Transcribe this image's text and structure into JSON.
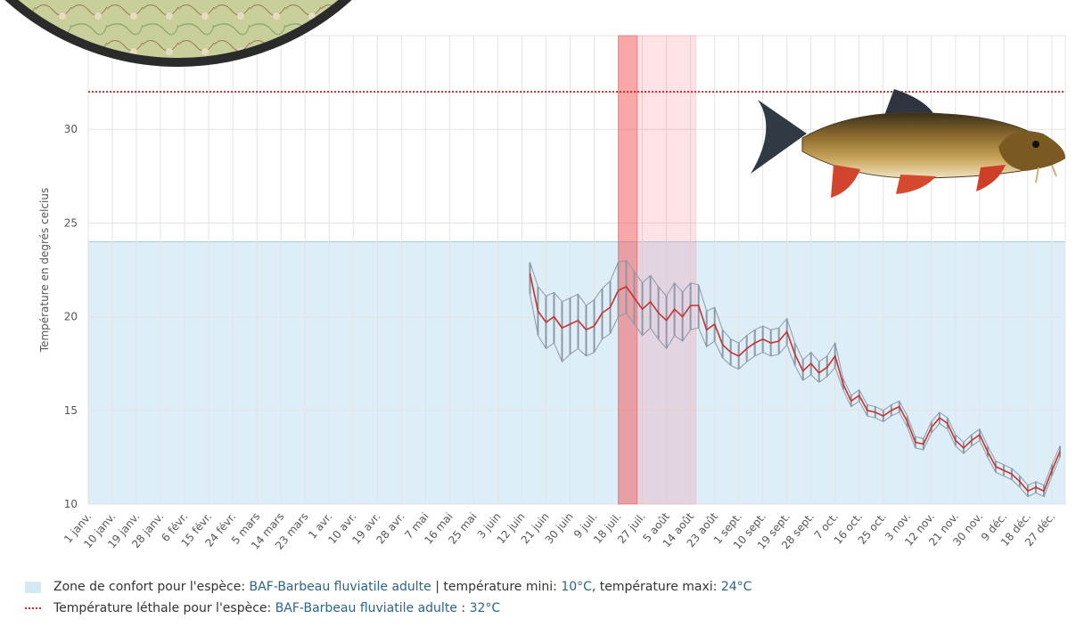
{
  "chart_data": {
    "type": "line",
    "y_label": "Température en degrés celcius",
    "xlim": [
      0,
      365
    ],
    "xticks": [
      {
        "value": 0,
        "label": "1 janv."
      },
      {
        "value": 9,
        "label": "10 janv."
      },
      {
        "value": 18,
        "label": "19 janv."
      },
      {
        "value": 27,
        "label": "28 janv."
      },
      {
        "value": 36,
        "label": "6 févr."
      },
      {
        "value": 45,
        "label": "15 févr."
      },
      {
        "value": 54,
        "label": "24 févr."
      },
      {
        "value": 63,
        "label": "5 mars"
      },
      {
        "value": 72,
        "label": "14 mars"
      },
      {
        "value": 81,
        "label": "23 mars"
      },
      {
        "value": 90,
        "label": "1 avr."
      },
      {
        "value": 99,
        "label": "10 avr."
      },
      {
        "value": 108,
        "label": "19 avr."
      },
      {
        "value": 117,
        "label": "28 avr."
      },
      {
        "value": 126,
        "label": "7 mai"
      },
      {
        "value": 135,
        "label": "16 mai"
      },
      {
        "value": 144,
        "label": "25 mai"
      },
      {
        "value": 153,
        "label": "3 juin"
      },
      {
        "value": 162,
        "label": "12 juin"
      },
      {
        "value": 171,
        "label": "21 juin"
      },
      {
        "value": 180,
        "label": "30 juin"
      },
      {
        "value": 189,
        "label": "9 juil."
      },
      {
        "value": 198,
        "label": "18 juil."
      },
      {
        "value": 207,
        "label": "27 juil."
      },
      {
        "value": 216,
        "label": "5 août"
      },
      {
        "value": 225,
        "label": "14 août"
      },
      {
        "value": 234,
        "label": "23 août"
      },
      {
        "value": 243,
        "label": "1 sept."
      },
      {
        "value": 252,
        "label": "10 sept."
      },
      {
        "value": 261,
        "label": "19 sept."
      },
      {
        "value": 270,
        "label": "28 sept."
      },
      {
        "value": 279,
        "label": "7 oct."
      },
      {
        "value": 288,
        "label": "16 oct."
      },
      {
        "value": 297,
        "label": "25 oct."
      },
      {
        "value": 306,
        "label": "3 nov."
      },
      {
        "value": 315,
        "label": "12 nov."
      },
      {
        "value": 324,
        "label": "21 nov."
      },
      {
        "value": 333,
        "label": "30 nov."
      },
      {
        "value": 342,
        "label": "9 déc."
      },
      {
        "value": 351,
        "label": "18 déc."
      },
      {
        "value": 360,
        "label": "27 déc."
      }
    ],
    "ylim": [
      10,
      35
    ],
    "yticks": [
      10,
      15,
      20,
      25,
      30
    ],
    "grid": true,
    "comfort_zone": {
      "range": [
        10,
        24
      ],
      "color": "#ddeef9",
      "edge_color": "#a9c9de"
    },
    "lethal": {
      "value": 32,
      "color": "#d62728"
    },
    "highlights": [
      {
        "range": [
          198,
          205
        ],
        "color": "rgba(245,60,60,0.45)"
      },
      {
        "range": [
          205,
          227
        ],
        "color": "rgba(250,110,130,0.2)"
      }
    ],
    "x": [
      165,
      168,
      171,
      174,
      177,
      180,
      183,
      186,
      189,
      192,
      195,
      198,
      201,
      204,
      207,
      210,
      213,
      216,
      219,
      222,
      225,
      228,
      231,
      234,
      237,
      240,
      243,
      246,
      249,
      252,
      255,
      258,
      261,
      264,
      267,
      270,
      273,
      276,
      279,
      282,
      285,
      288,
      291,
      294,
      297,
      300,
      303,
      306,
      309,
      312,
      315,
      318,
      321,
      324,
      327,
      330,
      333,
      336,
      339,
      342,
      345,
      348,
      351,
      354,
      357,
      360,
      363
    ],
    "range": {
      "color": "#8d9aa6",
      "high": [
        22.9,
        21.6,
        21.1,
        21.3,
        20.8,
        21.0,
        21.2,
        20.6,
        20.9,
        21.5,
        21.9,
        22.9,
        23.0,
        22.4,
        21.8,
        22.2,
        21.6,
        21.1,
        21.8,
        21.3,
        21.8,
        21.7,
        20.3,
        20.5,
        19.3,
        18.8,
        18.6,
        19.0,
        19.3,
        19.5,
        19.3,
        19.4,
        19.9,
        18.6,
        17.7,
        18.1,
        17.6,
        17.9,
        18.6,
        16.7,
        15.8,
        16.1,
        15.3,
        15.2,
        15.0,
        15.3,
        15.5,
        14.7,
        13.6,
        13.5,
        14.4,
        14.9,
        14.6,
        13.7,
        13.3,
        13.7,
        14.0,
        13.1,
        12.3,
        12.1,
        11.9,
        11.5,
        11.0,
        11.2,
        11.0,
        12.1,
        13.1
      ],
      "low": [
        21.2,
        19.0,
        18.3,
        18.6,
        17.6,
        18.0,
        18.3,
        17.9,
        18.1,
        18.8,
        19.1,
        20.0,
        20.2,
        19.6,
        19.0,
        19.4,
        18.8,
        18.3,
        19.0,
        18.7,
        19.3,
        19.4,
        18.4,
        18.7,
        17.8,
        17.4,
        17.2,
        17.6,
        17.9,
        18.1,
        17.9,
        18.0,
        18.5,
        17.4,
        16.6,
        16.9,
        16.5,
        16.8,
        17.3,
        16.1,
        15.2,
        15.5,
        14.7,
        14.6,
        14.4,
        14.7,
        14.9,
        14.1,
        13.0,
        12.9,
        13.8,
        14.3,
        14.0,
        13.1,
        12.7,
        13.1,
        13.4,
        12.5,
        11.7,
        11.5,
        11.3,
        10.9,
        10.4,
        10.6,
        10.4,
        11.5,
        12.5
      ]
    },
    "series": [
      {
        "color": "#c9302c",
        "values": [
          22.3,
          20.3,
          19.7,
          20.0,
          19.4,
          19.6,
          19.8,
          19.3,
          19.5,
          20.2,
          20.5,
          21.4,
          21.6,
          21.0,
          20.4,
          20.8,
          20.2,
          19.8,
          20.4,
          20.0,
          20.6,
          20.6,
          19.3,
          19.6,
          18.5,
          18.1,
          17.9,
          18.3,
          18.6,
          18.8,
          18.6,
          18.7,
          19.2,
          18.0,
          17.1,
          17.5,
          17.0,
          17.3,
          17.9,
          16.4,
          15.5,
          15.8,
          15.0,
          14.9,
          14.7,
          15.0,
          15.2,
          14.4,
          13.3,
          13.2,
          14.1,
          14.6,
          14.3,
          13.4,
          13.0,
          13.4,
          13.7,
          12.8,
          12.0,
          11.8,
          11.6,
          11.2,
          10.7,
          10.9,
          10.7,
          11.8,
          12.8
        ]
      }
    ],
    "legend": [
      {
        "marker": "box",
        "color": "#d4e8f6",
        "text": [
          "Zone de confort pour l'espèce: ",
          "BAF-Barbeau fluviatile adulte",
          " | température mini: ",
          "10°C",
          ", température maxi: ",
          "24°C"
        ]
      },
      {
        "marker": "dotted",
        "color": "#d62728",
        "text": [
          "Température léthale pour l'espèce: ",
          "BAF-Barbeau fluviatile adulte",
          " : ",
          "32°C"
        ]
      }
    ]
  }
}
